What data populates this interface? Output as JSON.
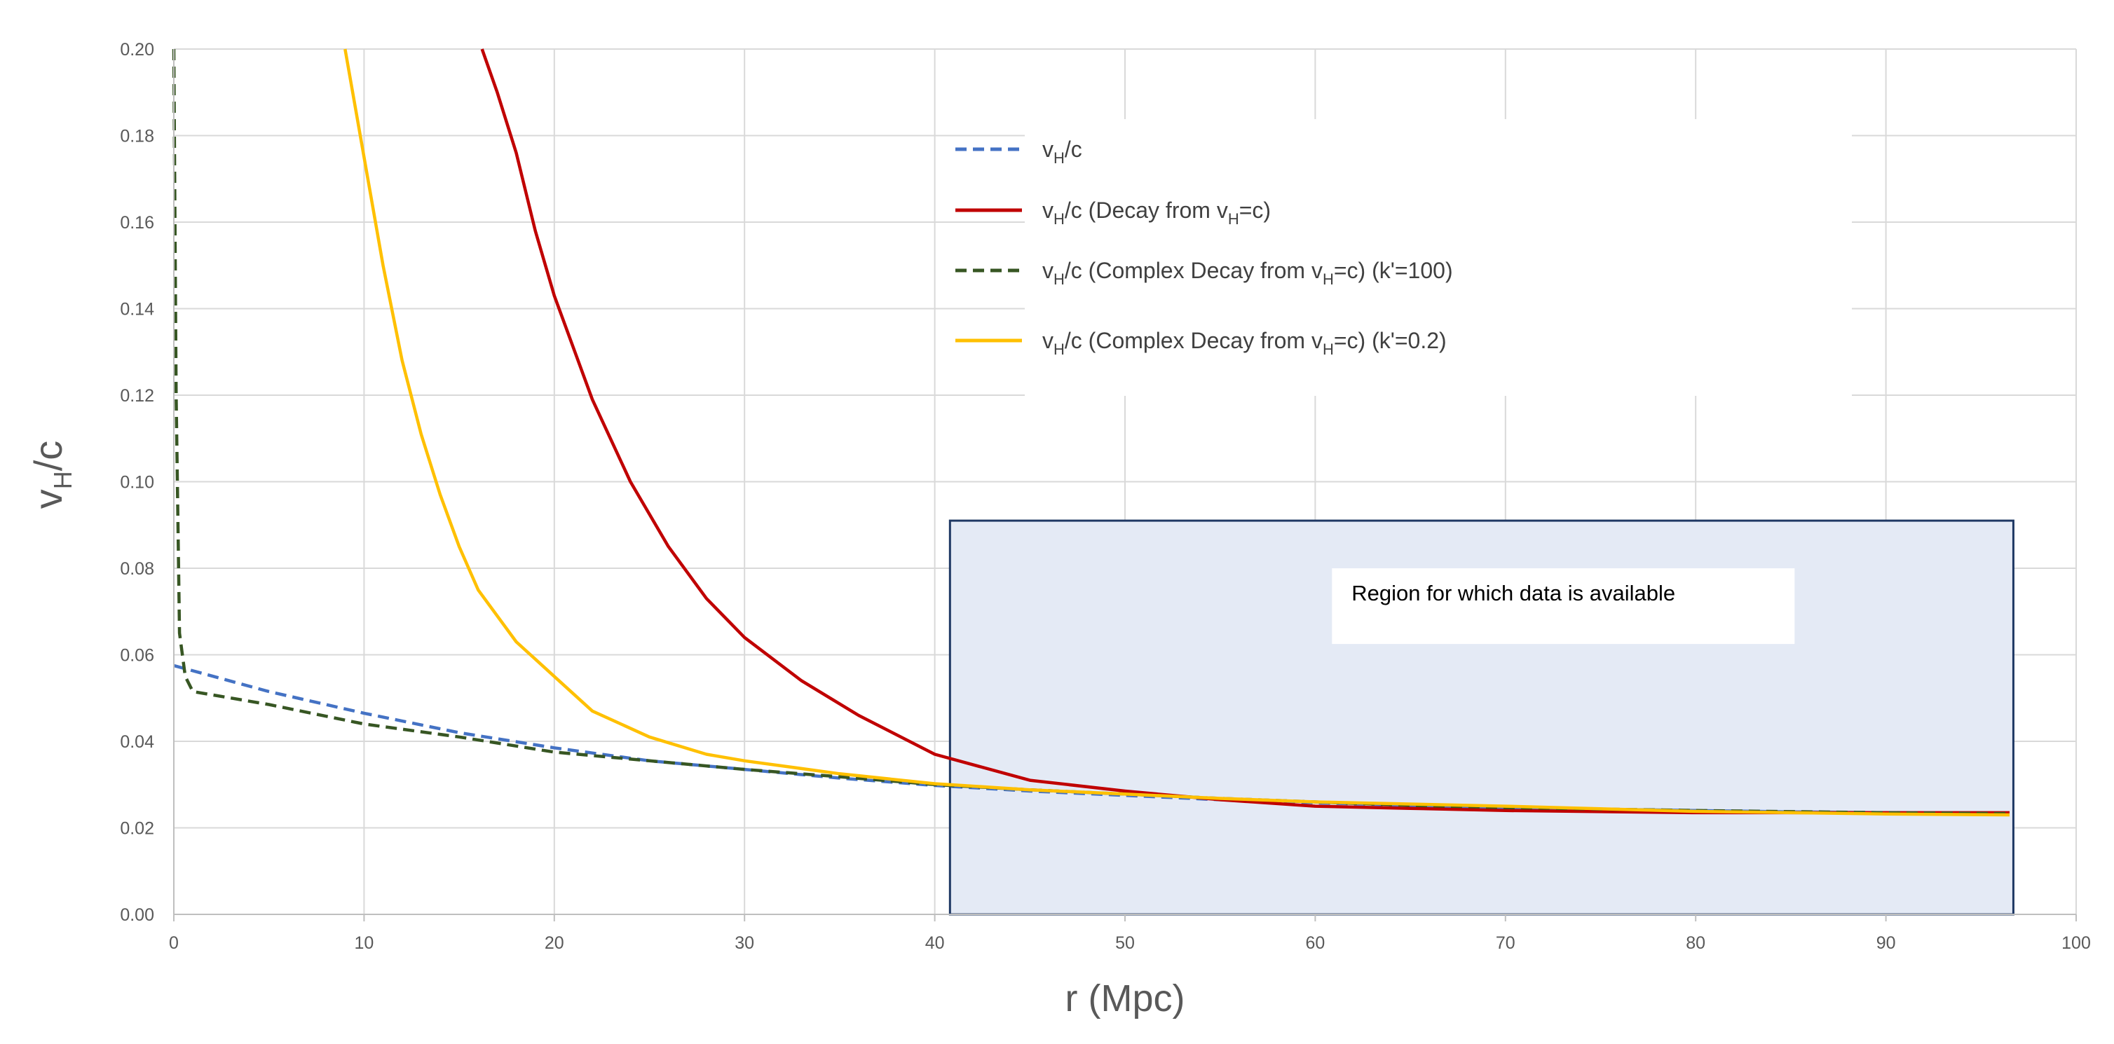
{
  "chart_data": {
    "type": "line",
    "title": "",
    "xlabel": "r (Mpc)",
    "ylabel": {
      "main": "v",
      "sub": "H",
      "tail": "/c"
    },
    "xlim": [
      0,
      100
    ],
    "ylim": [
      0,
      0.2
    ],
    "x_ticks": [
      {
        "v": 0,
        "label": "0"
      },
      {
        "v": 10,
        "label": "10"
      },
      {
        "v": 20,
        "label": "20"
      },
      {
        "v": 30,
        "label": "30"
      },
      {
        "v": 40,
        "label": "40"
      },
      {
        "v": 50,
        "label": "50"
      },
      {
        "v": 60,
        "label": "60"
      },
      {
        "v": 70,
        "label": "70"
      },
      {
        "v": 80,
        "label": "80"
      },
      {
        "v": 90,
        "label": "90"
      },
      {
        "v": 100,
        "label": "100"
      }
    ],
    "y_ticks": [
      {
        "v": 0,
        "label": "0.00"
      },
      {
        "v": 0.02,
        "label": "0.02"
      },
      {
        "v": 0.04,
        "label": "0.04"
      },
      {
        "v": 0.06,
        "label": "0.06"
      },
      {
        "v": 0.08,
        "label": "0.08"
      },
      {
        "v": 0.1,
        "label": "0.10"
      },
      {
        "v": 0.12,
        "label": "0.12"
      },
      {
        "v": 0.14,
        "label": "0.14"
      },
      {
        "v": 0.16,
        "label": "0.16"
      },
      {
        "v": 0.18,
        "label": "0.18"
      },
      {
        "v": 0.2,
        "label": "0.20"
      }
    ],
    "grid": true,
    "legend_position": "top-right",
    "series": [
      {
        "legend": {
          "main": "v",
          "sub": "H",
          "tail": "/c"
        },
        "color": "#4472C4",
        "dash": "dashed",
        "x": [
          0,
          5,
          10,
          15,
          20,
          25,
          30,
          35,
          40,
          45,
          50,
          55,
          60,
          65,
          70,
          75,
          80,
          85,
          90,
          96.5
        ],
        "y": [
          0.0575,
          0.0515,
          0.0465,
          0.042,
          0.0385,
          0.0355,
          0.0335,
          0.0315,
          0.0298,
          0.0285,
          0.0275,
          0.0265,
          0.0258,
          0.0252,
          0.0247,
          0.0243,
          0.024,
          0.0237,
          0.0235,
          0.0233
        ]
      },
      {
        "legend": {
          "main": "v",
          "sub": "H",
          "tail": "/c (Decay from v",
          "sub2": "H",
          "tail2": "=c)"
        },
        "color": "#C00000",
        "dash": "solid",
        "x": [
          16.2,
          17,
          18,
          19,
          20,
          22,
          24,
          26,
          28,
          30,
          33,
          36,
          40,
          45,
          50,
          55,
          60,
          65,
          70,
          80,
          90,
          96.5
        ],
        "y": [
          0.2,
          0.19,
          0.176,
          0.158,
          0.143,
          0.119,
          0.1,
          0.085,
          0.073,
          0.064,
          0.054,
          0.046,
          0.037,
          0.031,
          0.0285,
          0.0265,
          0.025,
          0.0245,
          0.024,
          0.0235,
          0.0235,
          0.0235
        ]
      },
      {
        "legend": {
          "main": "v",
          "sub": "H",
          "tail": "/c (Complex Decay from v",
          "sub2": "H",
          "tail2": "=c) (k'=100)"
        },
        "color": "#375623",
        "dash": "dashed",
        "x": [
          0,
          0.12,
          0.3,
          0.6,
          1,
          5,
          10,
          15,
          20,
          25,
          30,
          35,
          40,
          45,
          50,
          55,
          60,
          65,
          70,
          80,
          90,
          96.5
        ],
        "y": [
          0.2,
          0.12,
          0.065,
          0.055,
          0.0515,
          0.0485,
          0.044,
          0.041,
          0.0375,
          0.0355,
          0.0335,
          0.0318,
          0.03,
          0.0288,
          0.0278,
          0.0268,
          0.026,
          0.0252,
          0.0247,
          0.024,
          0.0235,
          0.0233
        ]
      },
      {
        "legend": {
          "main": "v",
          "sub": "H",
          "tail": "/c (Complex Decay from v",
          "sub2": "H",
          "tail2": "=c) (k'=0.2)"
        },
        "color": "#FFC000",
        "dash": "solid",
        "x": [
          9,
          10,
          11,
          12,
          13,
          14,
          15,
          16,
          18,
          20,
          22,
          25,
          28,
          30,
          35,
          40,
          45,
          50,
          55,
          60,
          70,
          80,
          90,
          96.5
        ],
        "y": [
          0.2,
          0.175,
          0.15,
          0.128,
          0.111,
          0.097,
          0.085,
          0.075,
          0.063,
          0.055,
          0.047,
          0.041,
          0.037,
          0.0355,
          0.0325,
          0.0302,
          0.0288,
          0.0278,
          0.0268,
          0.026,
          0.025,
          0.0238,
          0.0232,
          0.023
        ]
      }
    ],
    "annotations": [
      {
        "text": "Region for which data is available",
        "region_x": [
          40.8,
          96.7
        ],
        "region_y": [
          0,
          0.091
        ],
        "fill": "#E4EAF5",
        "stroke": "#1F3864"
      }
    ]
  }
}
